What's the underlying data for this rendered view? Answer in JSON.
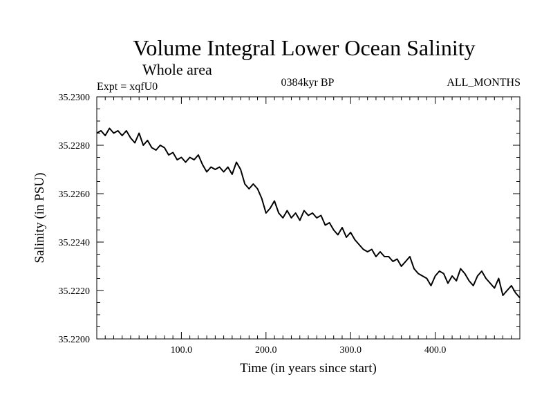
{
  "chart_data": {
    "type": "line",
    "title": "Volume Integral Lower Ocean Salinity",
    "subtitle": "Whole area",
    "annotations": {
      "left": "Expt = xqfU0",
      "center": "0384kyr BP",
      "right": "ALL_MONTHS"
    },
    "xlabel": "Time (in years since start)",
    "ylabel": "Salinity (in PSU)",
    "xlim": [
      0,
      500
    ],
    "ylim": [
      35.22,
      35.23
    ],
    "x_ticks": [
      {
        "value": 100,
        "label": "100.0"
      },
      {
        "value": 200,
        "label": "200.0"
      },
      {
        "value": 300,
        "label": "300.0"
      },
      {
        "value": 400,
        "label": "400.0"
      }
    ],
    "y_ticks": [
      {
        "value": 35.22,
        "label": "35.2200"
      },
      {
        "value": 35.222,
        "label": "35.2220"
      },
      {
        "value": 35.224,
        "label": "35.2240"
      },
      {
        "value": 35.226,
        "label": "35.2260"
      },
      {
        "value": 35.228,
        "label": "35.2280"
      },
      {
        "value": 35.23,
        "label": "35.2300"
      }
    ],
    "grid": false,
    "series": [
      {
        "name": "salinity",
        "x": [
          0,
          5,
          10,
          15,
          20,
          25,
          30,
          35,
          40,
          45,
          50,
          55,
          60,
          65,
          70,
          75,
          80,
          85,
          90,
          95,
          100,
          105,
          110,
          115,
          120,
          125,
          130,
          135,
          140,
          145,
          150,
          155,
          160,
          165,
          170,
          175,
          180,
          185,
          190,
          195,
          200,
          205,
          210,
          215,
          220,
          225,
          230,
          235,
          240,
          245,
          250,
          255,
          260,
          265,
          270,
          275,
          280,
          285,
          290,
          295,
          300,
          305,
          310,
          315,
          320,
          325,
          330,
          335,
          340,
          345,
          350,
          355,
          360,
          365,
          370,
          375,
          380,
          385,
          390,
          395,
          400,
          405,
          410,
          415,
          420,
          425,
          430,
          435,
          440,
          445,
          450,
          455,
          460,
          465,
          470,
          475,
          480,
          485,
          490,
          495,
          500
        ],
        "values": [
          35.2285,
          35.2286,
          35.2284,
          35.2287,
          35.2285,
          35.2286,
          35.2284,
          35.2286,
          35.2283,
          35.2281,
          35.2285,
          35.228,
          35.2282,
          35.2279,
          35.2278,
          35.228,
          35.2279,
          35.2276,
          35.2277,
          35.2274,
          35.2275,
          35.2273,
          35.2275,
          35.2274,
          35.2276,
          35.2272,
          35.2269,
          35.2271,
          35.227,
          35.2271,
          35.2269,
          35.2271,
          35.2268,
          35.2273,
          35.227,
          35.2264,
          35.2262,
          35.2264,
          35.2262,
          35.2258,
          35.2252,
          35.2254,
          35.2257,
          35.2252,
          35.225,
          35.2253,
          35.225,
          35.2252,
          35.2249,
          35.2253,
          35.2251,
          35.2252,
          35.225,
          35.2251,
          35.2247,
          35.2248,
          35.2245,
          35.2243,
          35.2246,
          35.2242,
          35.2244,
          35.2241,
          35.2239,
          35.2237,
          35.2236,
          35.2237,
          35.2234,
          35.2236,
          35.2234,
          35.2234,
          35.2232,
          35.2233,
          35.223,
          35.2232,
          35.2234,
          35.2229,
          35.2227,
          35.2226,
          35.2225,
          35.2222,
          35.2226,
          35.2228,
          35.2227,
          35.2223,
          35.2226,
          35.2224,
          35.2229,
          35.2227,
          35.2224,
          35.2222,
          35.2226,
          35.2228,
          35.2225,
          35.2223,
          35.2221,
          35.2225,
          35.2218,
          35.222,
          35.2222,
          35.2219,
          35.2217
        ]
      }
    ]
  }
}
